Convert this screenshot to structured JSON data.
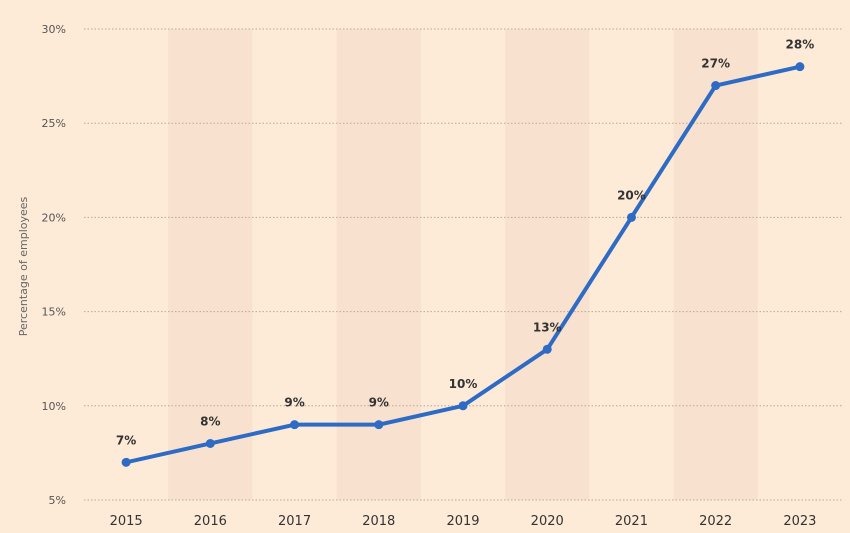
{
  "chart_data": {
    "type": "line",
    "title": "",
    "xlabel": "",
    "ylabel": "Percentage of employees",
    "x": [
      "2015",
      "2016",
      "2017",
      "2018",
      "2019",
      "2020",
      "2021",
      "2022",
      "2023"
    ],
    "values": [
      7,
      8,
      9,
      9,
      10,
      13,
      20,
      27,
      28
    ],
    "data_labels": [
      "7%",
      "8%",
      "9%",
      "9%",
      "10%",
      "13%",
      "20%",
      "27%",
      "28%"
    ],
    "y_ticks": [
      5,
      10,
      15,
      20,
      25,
      30
    ],
    "y_tick_labels": [
      "5%",
      "10%",
      "15%",
      "20%",
      "25%",
      "30%"
    ],
    "ylim": [
      5,
      30
    ],
    "grid": true,
    "legend": "none",
    "colors": {
      "background": "#fdebd8",
      "band": "#f8e2cf",
      "line": "#2d6bc4",
      "grid": "#b8a898"
    }
  }
}
